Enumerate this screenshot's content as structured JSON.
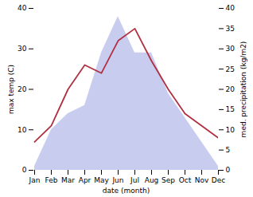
{
  "chart_data": {
    "type": "line",
    "xlabel": "date (month)",
    "ylabel": "max temp (C)",
    "y2label": "med. precipitation (kg/m2)",
    "categories": [
      "Jan",
      "Feb",
      "Mar",
      "Apr",
      "May",
      "Jun",
      "Jul",
      "Aug",
      "Sep",
      "Oct",
      "Nov",
      "Dec"
    ],
    "ylim": [
      0,
      40
    ],
    "yticks": [
      0,
      10,
      20,
      30,
      40
    ],
    "y2lim": [
      0,
      40
    ],
    "y2ticks": [
      0,
      5,
      10,
      15,
      20,
      25,
      30,
      35,
      40
    ],
    "grid": false,
    "series": [
      {
        "type": "area",
        "axis": "y2",
        "color": "#b0b8e8",
        "values": [
          1,
          10,
          14,
          16,
          29,
          38,
          29,
          29,
          19,
          13,
          7,
          1
        ]
      },
      {
        "type": "line",
        "color": "#b03040",
        "values": [
          7,
          11,
          20,
          26,
          24,
          32,
          35,
          27,
          20,
          14,
          11,
          8
        ]
      }
    ]
  }
}
